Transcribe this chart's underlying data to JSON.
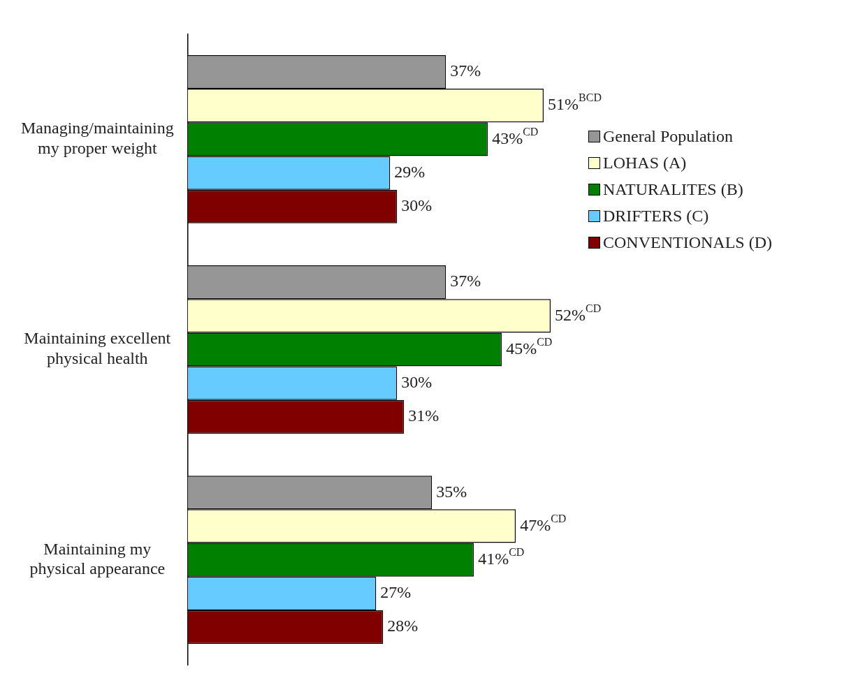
{
  "chart_data": {
    "type": "bar",
    "orientation": "horizontal",
    "categories": [
      "Managing/maintaining my proper weight",
      "Maintaining excellent physical health",
      "Maintaining my physical appearance"
    ],
    "series": [
      {
        "name": "General Population",
        "color": "#969696",
        "values": [
          37,
          37,
          35
        ],
        "value_labels": [
          "37%",
          "37%",
          "35%"
        ]
      },
      {
        "name": "LOHAS (A)",
        "color": "#ffffcc",
        "values": [
          51,
          52,
          47
        ],
        "value_labels": [
          "51%$^{BCD}$",
          "52%$^{CD}$",
          "47%$^{CD}$"
        ]
      },
      {
        "name": "NATURALITES (B)",
        "color": "#008000",
        "values": [
          43,
          45,
          41
        ],
        "value_labels": [
          "43%$^{CD}$",
          "45%$^{CD}$",
          "41%$^{CD}$"
        ]
      },
      {
        "name": "DRIFTERS (C)",
        "color": "#66ccff",
        "values": [
          29,
          30,
          27
        ],
        "value_labels": [
          "29%",
          "30%",
          "27%"
        ]
      },
      {
        "name": "CONVENTIONALS (D)",
        "color": "#800000",
        "values": [
          30,
          31,
          28
        ],
        "value_labels": [
          "30%",
          "31%",
          "28%"
        ]
      }
    ],
    "tick_labels": "y",
    "legend": "right"
  }
}
